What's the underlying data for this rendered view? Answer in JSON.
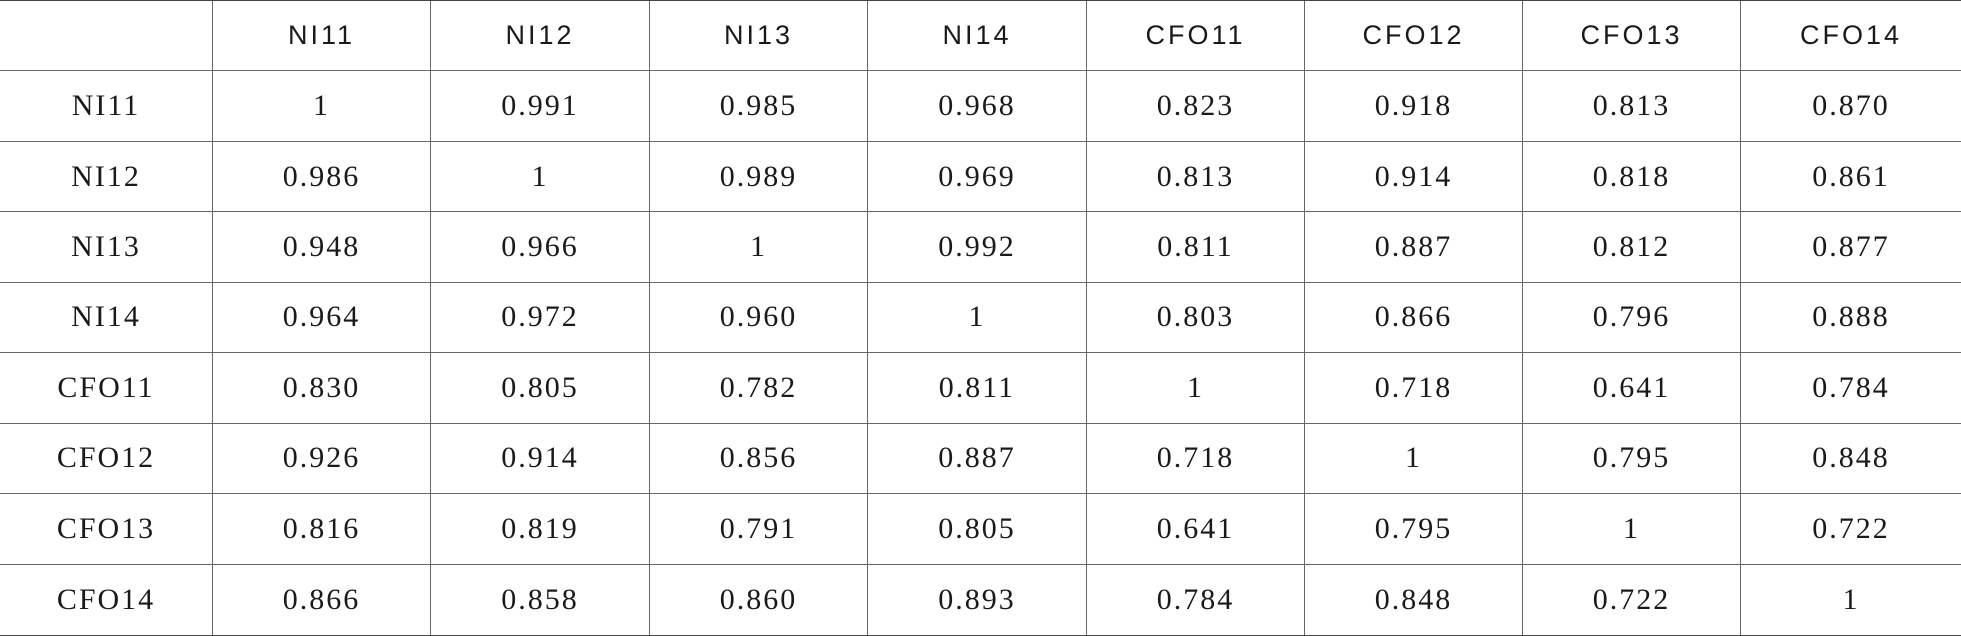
{
  "table": {
    "columns": [
      "NI11",
      "NI12",
      "NI13",
      "NI14",
      "CFO11",
      "CFO12",
      "CFO13",
      "CFO14"
    ],
    "rows": [
      {
        "label": "NI11",
        "values": [
          "1",
          "0.991",
          "0.985",
          "0.968",
          "0.823",
          "0.918",
          "0.813",
          "0.870"
        ]
      },
      {
        "label": "NI12",
        "values": [
          "0.986",
          "1",
          "0.989",
          "0.969",
          "0.813",
          "0.914",
          "0.818",
          "0.861"
        ]
      },
      {
        "label": "NI13",
        "values": [
          "0.948",
          "0.966",
          "1",
          "0.992",
          "0.811",
          "0.887",
          "0.812",
          "0.877"
        ]
      },
      {
        "label": "NI14",
        "values": [
          "0.964",
          "0.972",
          "0.960",
          "1",
          "0.803",
          "0.866",
          "0.796",
          "0.888"
        ]
      },
      {
        "label": "CFO11",
        "values": [
          "0.830",
          "0.805",
          "0.782",
          "0.811",
          "1",
          "0.718",
          "0.641",
          "0.784"
        ]
      },
      {
        "label": "CFO12",
        "values": [
          "0.926",
          "0.914",
          "0.856",
          "0.887",
          "0.718",
          "1",
          "0.795",
          "0.848"
        ]
      },
      {
        "label": "CFO13",
        "values": [
          "0.816",
          "0.819",
          "0.791",
          "0.805",
          "0.641",
          "0.795",
          "1",
          "0.722"
        ]
      },
      {
        "label": "CFO14",
        "values": [
          "0.866",
          "0.858",
          "0.860",
          "0.893",
          "0.784",
          "0.848",
          "0.722",
          "1"
        ]
      }
    ]
  }
}
